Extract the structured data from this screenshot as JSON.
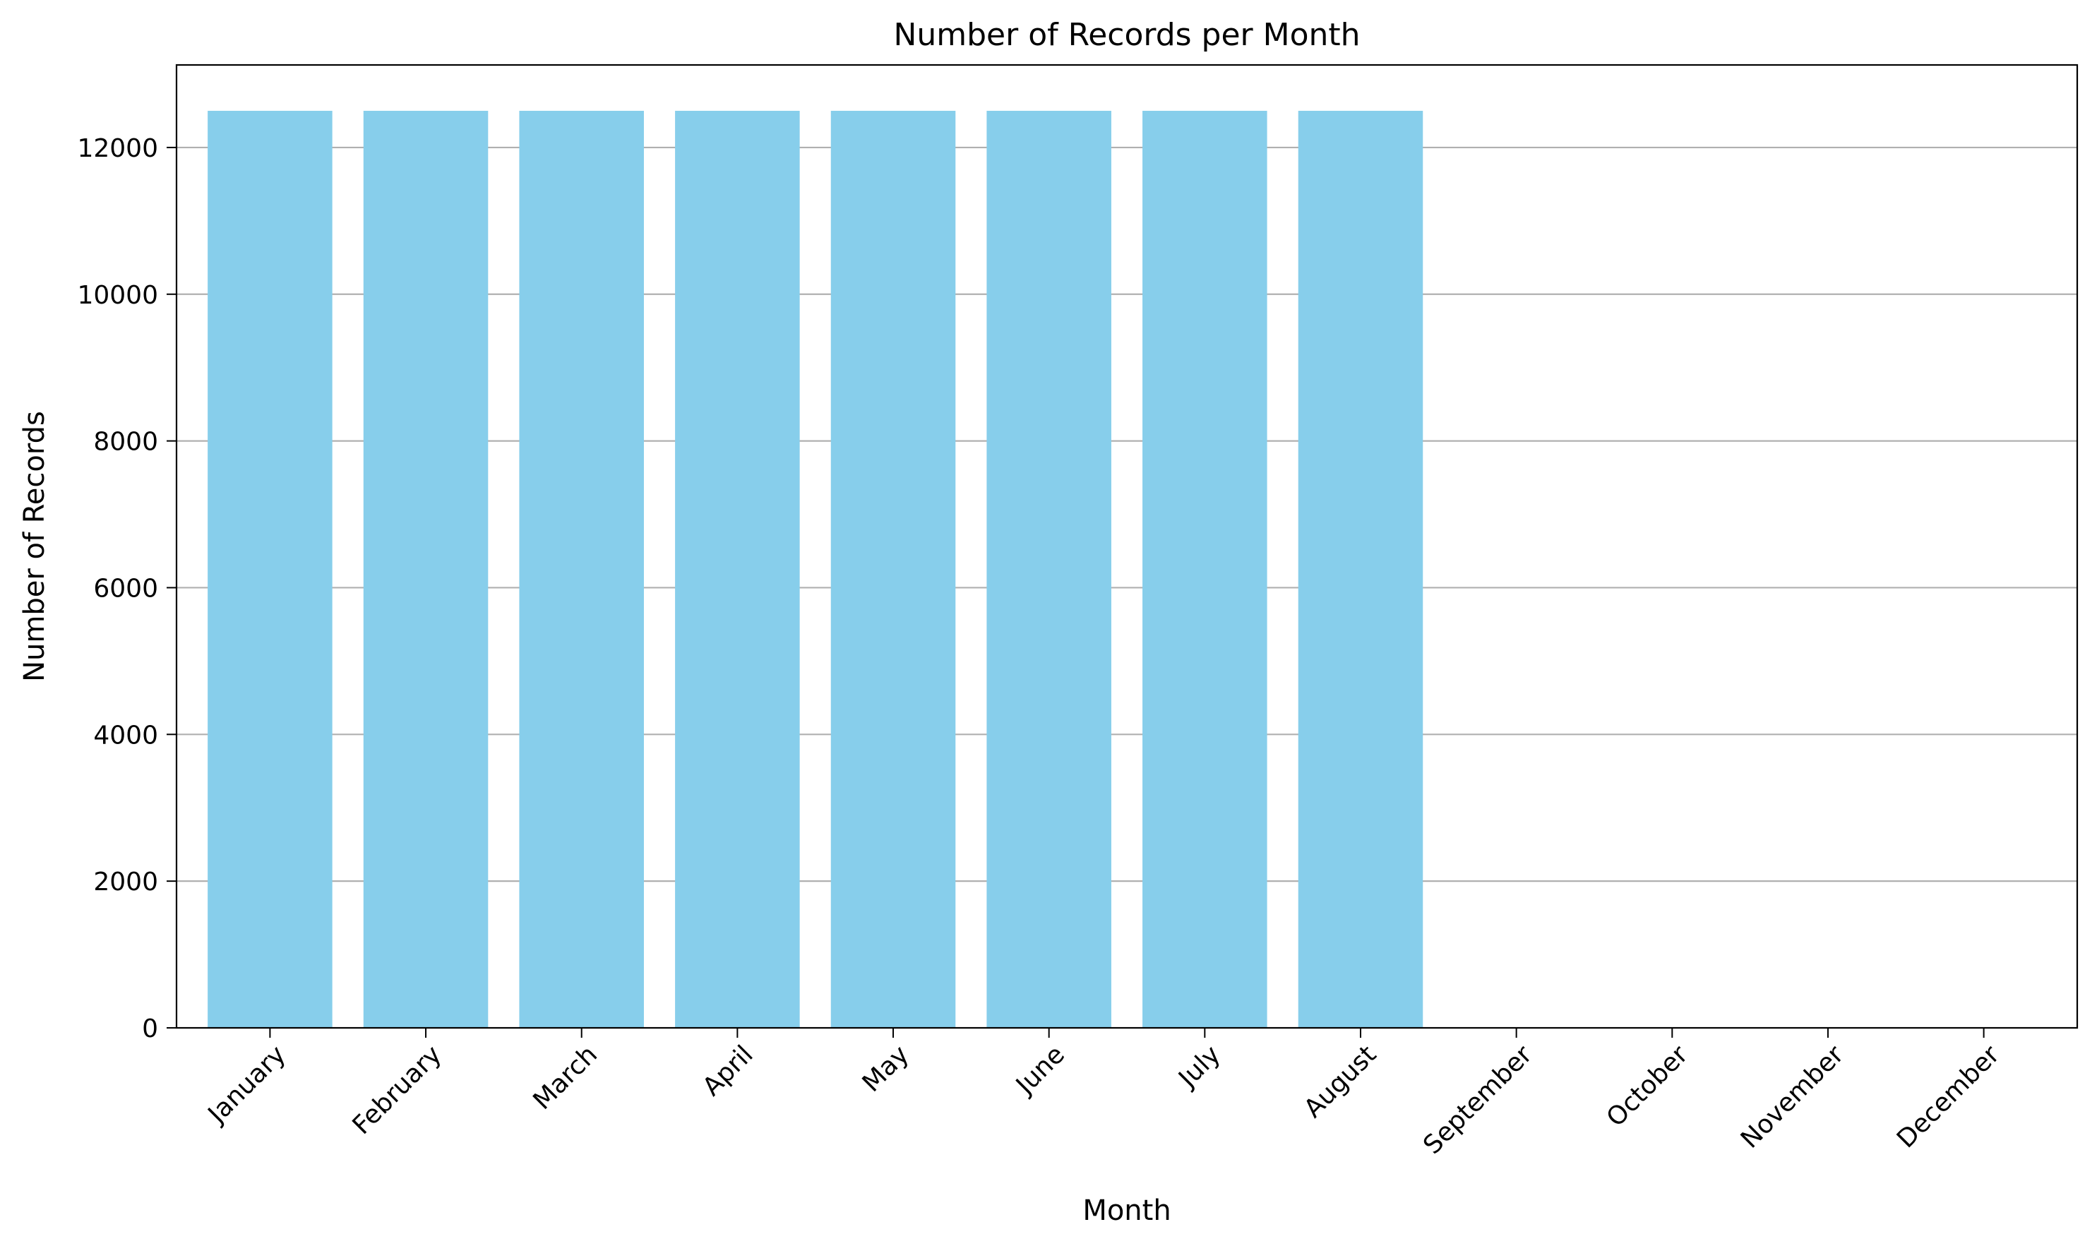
{
  "chart_data": {
    "type": "bar",
    "title": "Number of Records per Month",
    "xlabel": "Month",
    "ylabel": "Number of Records",
    "categories": [
      "January",
      "February",
      "March",
      "April",
      "May",
      "June",
      "July",
      "August",
      "September",
      "October",
      "November",
      "December"
    ],
    "values": [
      12500,
      12500,
      12500,
      12500,
      12500,
      12500,
      12500,
      12500,
      0,
      0,
      0,
      0
    ],
    "ylim": [
      0,
      13125
    ],
    "yticks": [
      0,
      2000,
      4000,
      6000,
      8000,
      10000,
      12000
    ],
    "grid": "y-axis",
    "bar_color": "#87CEEB",
    "grid_color": "#b0b0b0",
    "legend": "none"
  }
}
